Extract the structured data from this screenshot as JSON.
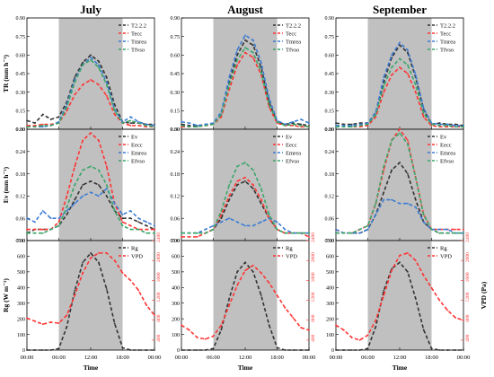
{
  "figure": {
    "months": [
      "July",
      "August",
      "September"
    ],
    "xlabel": "Time",
    "xticks": [
      "00:00",
      "06:00",
      "12:00",
      "18:00",
      "00:00"
    ],
    "row_ylabels": [
      "TR (mm h⁻¹)",
      "Ev (mm h⁻¹)",
      "Rg (W m⁻²)"
    ],
    "right_ylabel": "VPD (Pa)",
    "colors": {
      "black": "#333333",
      "red": "#ff3333",
      "blue": "#3b7bd4",
      "green": "#3aa66a",
      "shade": "#c0c0c0"
    }
  },
  "chart_data": [
    {
      "type": "line",
      "panel": "TR",
      "month": "July",
      "x": [
        0,
        1.5,
        3,
        4.5,
        6,
        7.5,
        9,
        10.5,
        12,
        13.5,
        15,
        16.5,
        18,
        19.5,
        21,
        22.5,
        24
      ],
      "xlim": [
        0,
        24
      ],
      "ylim": [
        0,
        0.9
      ],
      "yticks": [
        0.0,
        0.15,
        0.3,
        0.45,
        0.6,
        0.75,
        0.9
      ],
      "shaded": [
        6,
        18
      ],
      "series": [
        {
          "name": "T2.2.2",
          "color": "#333333",
          "values": [
            0.07,
            0.05,
            0.12,
            0.08,
            0.1,
            0.22,
            0.42,
            0.54,
            0.6,
            0.55,
            0.42,
            0.2,
            0.06,
            0.05,
            0.05,
            0.04,
            0.04
          ]
        },
        {
          "name": "Tecc",
          "color": "#ff3333",
          "values": [
            0.03,
            0.03,
            0.04,
            0.04,
            0.05,
            0.15,
            0.28,
            0.36,
            0.4,
            0.36,
            0.27,
            0.12,
            0.05,
            0.03,
            0.03,
            0.02,
            0.02
          ]
        },
        {
          "name": "Tmrea",
          "color": "#3b7bd4",
          "values": [
            0.02,
            0.02,
            0.02,
            0.03,
            0.06,
            0.2,
            0.4,
            0.52,
            0.58,
            0.52,
            0.38,
            0.16,
            0.06,
            0.1,
            0.06,
            0.04,
            0.03
          ]
        },
        {
          "name": "Tfvso",
          "color": "#3aa66a",
          "values": [
            0.02,
            0.02,
            0.03,
            0.03,
            0.05,
            0.18,
            0.38,
            0.52,
            0.56,
            0.5,
            0.36,
            0.15,
            0.05,
            0.07,
            0.05,
            0.03,
            0.02
          ]
        }
      ]
    },
    {
      "type": "line",
      "panel": "TR",
      "month": "August",
      "x": [
        0,
        1.5,
        3,
        4.5,
        6,
        7.5,
        9,
        10.5,
        12,
        13.5,
        15,
        16.5,
        18,
        19.5,
        21,
        22.5,
        24
      ],
      "xlim": [
        0,
        24
      ],
      "ylim": [
        0,
        0.9
      ],
      "yticks": [
        0.0,
        0.15,
        0.3,
        0.45,
        0.6,
        0.75,
        0.9
      ],
      "shaded": [
        6,
        18
      ],
      "series": [
        {
          "name": "T2.2.2",
          "color": "#333333",
          "values": [
            0.04,
            0.03,
            0.03,
            0.03,
            0.04,
            0.12,
            0.38,
            0.6,
            0.72,
            0.68,
            0.5,
            0.22,
            0.06,
            0.04,
            0.05,
            0.04,
            0.03
          ]
        },
        {
          "name": "Tecc",
          "color": "#ff3333",
          "values": [
            0.02,
            0.02,
            0.02,
            0.03,
            0.04,
            0.1,
            0.32,
            0.52,
            0.62,
            0.58,
            0.44,
            0.18,
            0.05,
            0.03,
            0.03,
            0.02,
            0.02
          ]
        },
        {
          "name": "Tmrea",
          "color": "#3b7bd4",
          "values": [
            0.06,
            0.05,
            0.03,
            0.04,
            0.05,
            0.14,
            0.42,
            0.64,
            0.76,
            0.72,
            0.54,
            0.25,
            0.07,
            0.04,
            0.06,
            0.08,
            0.05
          ]
        },
        {
          "name": "Tfvso",
          "color": "#3aa66a",
          "values": [
            0.03,
            0.02,
            0.02,
            0.03,
            0.04,
            0.12,
            0.36,
            0.56,
            0.66,
            0.62,
            0.46,
            0.2,
            0.06,
            0.03,
            0.04,
            0.03,
            0.02
          ]
        }
      ]
    },
    {
      "type": "line",
      "panel": "TR",
      "month": "September",
      "x": [
        0,
        1.5,
        3,
        4.5,
        6,
        7.5,
        9,
        10.5,
        12,
        13.5,
        15,
        16.5,
        18,
        19.5,
        21,
        22.5,
        24
      ],
      "xlim": [
        0,
        24
      ],
      "ylim": [
        0,
        0.9
      ],
      "yticks": [
        0.0,
        0.15,
        0.3,
        0.45,
        0.6,
        0.75,
        0.9
      ],
      "shaded": [
        6,
        18
      ],
      "series": [
        {
          "name": "T2.2.2",
          "color": "#333333",
          "values": [
            0.05,
            0.04,
            0.04,
            0.05,
            0.05,
            0.12,
            0.38,
            0.58,
            0.68,
            0.62,
            0.42,
            0.16,
            0.04,
            0.05,
            0.04,
            0.04,
            0.03
          ]
        },
        {
          "name": "Tecc",
          "color": "#ff3333",
          "values": [
            0.02,
            0.02,
            0.02,
            0.02,
            0.03,
            0.1,
            0.3,
            0.44,
            0.5,
            0.45,
            0.3,
            0.1,
            0.03,
            0.02,
            0.02,
            0.02,
            0.02
          ]
        },
        {
          "name": "Tmrea",
          "color": "#3b7bd4",
          "values": [
            0.03,
            0.03,
            0.03,
            0.04,
            0.05,
            0.14,
            0.42,
            0.6,
            0.7,
            0.64,
            0.44,
            0.17,
            0.05,
            0.04,
            0.04,
            0.03,
            0.03
          ]
        },
        {
          "name": "Tfvso",
          "color": "#3aa66a",
          "values": [
            0.02,
            0.02,
            0.02,
            0.03,
            0.04,
            0.12,
            0.35,
            0.5,
            0.57,
            0.52,
            0.36,
            0.13,
            0.04,
            0.03,
            0.03,
            0.02,
            0.02
          ]
        }
      ]
    },
    {
      "type": "line",
      "panel": "Ev",
      "month": "July",
      "x": [
        0,
        1.5,
        3,
        4.5,
        6,
        7.5,
        9,
        10.5,
        12,
        13.5,
        15,
        16.5,
        18,
        19.5,
        21,
        22.5,
        24
      ],
      "xlim": [
        0,
        24
      ],
      "ylim": [
        0,
        0.3
      ],
      "yticks": [
        0.0,
        0.06,
        0.12,
        0.18,
        0.24,
        0.3
      ],
      "shaded": [
        6,
        18
      ],
      "series": [
        {
          "name": "Ev",
          "color": "#333333",
          "values": [
            0.02,
            0.03,
            0.03,
            0.03,
            0.04,
            0.07,
            0.11,
            0.15,
            0.16,
            0.15,
            0.12,
            0.08,
            0.06,
            0.06,
            0.05,
            0.04,
            0.03
          ]
        },
        {
          "name": "Eecc",
          "color": "#ff3333",
          "values": [
            0.03,
            0.03,
            0.03,
            0.03,
            0.05,
            0.12,
            0.2,
            0.27,
            0.29,
            0.27,
            0.2,
            0.1,
            0.05,
            0.04,
            0.03,
            0.03,
            0.03
          ]
        },
        {
          "name": "Emrea",
          "color": "#3b7bd4",
          "values": [
            0.06,
            0.05,
            0.08,
            0.06,
            0.06,
            0.08,
            0.1,
            0.12,
            0.13,
            0.12,
            0.14,
            0.1,
            0.07,
            0.08,
            0.06,
            0.05,
            0.04
          ]
        },
        {
          "name": "Efvso",
          "color": "#3aa66a",
          "values": [
            0.02,
            0.02,
            0.02,
            0.03,
            0.04,
            0.09,
            0.15,
            0.19,
            0.2,
            0.19,
            0.15,
            0.08,
            0.04,
            0.03,
            0.03,
            0.02,
            0.02
          ]
        }
      ]
    },
    {
      "type": "line",
      "panel": "Ev",
      "month": "August",
      "x": [
        0,
        1.5,
        3,
        4.5,
        6,
        7.5,
        9,
        10.5,
        12,
        13.5,
        15,
        16.5,
        18,
        19.5,
        21,
        22.5,
        24
      ],
      "xlim": [
        0,
        24
      ],
      "ylim": [
        0,
        0.3
      ],
      "yticks": [
        0.0,
        0.06,
        0.12,
        0.18,
        0.24,
        0.3
      ],
      "shaded": [
        6,
        18
      ],
      "series": [
        {
          "name": "Ev",
          "color": "#333333",
          "values": [
            0.02,
            0.02,
            0.02,
            0.02,
            0.03,
            0.06,
            0.11,
            0.15,
            0.16,
            0.14,
            0.1,
            0.06,
            0.03,
            0.02,
            0.02,
            0.02,
            0.02
          ]
        },
        {
          "name": "Eecc",
          "color": "#ff3333",
          "values": [
            0.01,
            0.01,
            0.01,
            0.02,
            0.03,
            0.07,
            0.12,
            0.16,
            0.17,
            0.15,
            0.11,
            0.06,
            0.03,
            0.02,
            0.02,
            0.02,
            0.01
          ]
        },
        {
          "name": "Emrea",
          "color": "#3b7bd4",
          "values": [
            0.02,
            0.02,
            0.02,
            0.03,
            0.04,
            0.05,
            0.06,
            0.05,
            0.04,
            0.04,
            0.05,
            0.06,
            0.05,
            0.03,
            0.02,
            0.02,
            0.02
          ]
        },
        {
          "name": "Efvso",
          "color": "#3aa66a",
          "values": [
            0.02,
            0.02,
            0.02,
            0.02,
            0.03,
            0.08,
            0.15,
            0.2,
            0.21,
            0.19,
            0.14,
            0.07,
            0.03,
            0.02,
            0.02,
            0.02,
            0.02
          ]
        }
      ]
    },
    {
      "type": "line",
      "panel": "Ev",
      "month": "September",
      "x": [
        0,
        1.5,
        3,
        4.5,
        6,
        7.5,
        9,
        10.5,
        12,
        13.5,
        15,
        16.5,
        18,
        19.5,
        21,
        22.5,
        24
      ],
      "xlim": [
        0,
        24
      ],
      "ylim": [
        0,
        0.3
      ],
      "yticks": [
        0.0,
        0.06,
        0.12,
        0.18,
        0.24,
        0.3
      ],
      "shaded": [
        6,
        18
      ],
      "series": [
        {
          "name": "Ev",
          "color": "#333333",
          "values": [
            0.02,
            0.02,
            0.02,
            0.02,
            0.03,
            0.07,
            0.13,
            0.19,
            0.21,
            0.18,
            0.11,
            0.05,
            0.03,
            0.02,
            0.02,
            0.02,
            0.02
          ]
        },
        {
          "name": "Eecc",
          "color": "#ff3333",
          "values": [
            0.03,
            0.02,
            0.02,
            0.03,
            0.04,
            0.1,
            0.19,
            0.27,
            0.3,
            0.27,
            0.17,
            0.07,
            0.03,
            0.03,
            0.03,
            0.03,
            0.03
          ]
        },
        {
          "name": "Emrea",
          "color": "#3b7bd4",
          "values": [
            0.03,
            0.02,
            0.02,
            0.02,
            0.03,
            0.07,
            0.11,
            0.11,
            0.1,
            0.1,
            0.09,
            0.05,
            0.03,
            0.03,
            0.03,
            0.02,
            0.02
          ]
        },
        {
          "name": "Efvso",
          "color": "#3aa66a",
          "values": [
            0.02,
            0.02,
            0.02,
            0.03,
            0.04,
            0.1,
            0.2,
            0.27,
            0.29,
            0.26,
            0.17,
            0.07,
            0.03,
            0.02,
            0.02,
            0.02,
            0.02
          ]
        }
      ]
    },
    {
      "type": "line",
      "panel": "Rg",
      "month": "July",
      "x": [
        0,
        1.5,
        3,
        4.5,
        6,
        7.5,
        9,
        10.5,
        12,
        13.5,
        15,
        16.5,
        18,
        19.5,
        21,
        22.5,
        24
      ],
      "xlim": [
        0,
        24
      ],
      "ylim": [
        0,
        700
      ],
      "yticks": [
        0,
        100,
        200,
        300,
        400,
        500,
        600,
        700
      ],
      "y2lim": [
        200,
        2400
      ],
      "y2ticks": [
        400,
        800,
        1200,
        1600,
        2000,
        2400
      ],
      "shaded": [
        6,
        18
      ],
      "series": [
        {
          "name": "Rg",
          "axis": "left",
          "color": "#333333",
          "values": [
            0,
            0,
            0,
            0,
            10,
            150,
            380,
            560,
            620,
            560,
            390,
            170,
            15,
            0,
            0,
            0,
            0
          ]
        },
        {
          "name": "VPD",
          "axis": "right",
          "color": "#ff3333",
          "values": [
            840,
            780,
            720,
            760,
            740,
            900,
            1300,
            1750,
            2050,
            2150,
            2150,
            2000,
            1750,
            1600,
            1400,
            1100,
            900
          ]
        }
      ]
    },
    {
      "type": "line",
      "panel": "Rg",
      "month": "August",
      "x": [
        0,
        1.5,
        3,
        4.5,
        6,
        7.5,
        9,
        10.5,
        12,
        13.5,
        15,
        16.5,
        18,
        19.5,
        21,
        22.5,
        24
      ],
      "xlim": [
        0,
        24
      ],
      "ylim": [
        0,
        700
      ],
      "yticks": [
        0,
        100,
        200,
        300,
        400,
        500,
        600,
        700
      ],
      "y2lim": [
        200,
        2400
      ],
      "y2ticks": [
        400,
        800,
        1200,
        1600,
        2000,
        2400
      ],
      "shaded": [
        6,
        18
      ],
      "series": [
        {
          "name": "Rg",
          "axis": "left",
          "color": "#333333",
          "values": [
            0,
            0,
            0,
            0,
            10,
            130,
            330,
            500,
            560,
            500,
            350,
            160,
            15,
            0,
            0,
            0,
            0
          ]
        },
        {
          "name": "VPD",
          "axis": "right",
          "color": "#ff3333",
          "values": [
            700,
            600,
            450,
            420,
            480,
            700,
            1100,
            1500,
            1800,
            1900,
            1750,
            1550,
            1300,
            1050,
            850,
            650,
            600
          ]
        }
      ]
    },
    {
      "type": "line",
      "panel": "Rg",
      "month": "September",
      "x": [
        0,
        1.5,
        3,
        4.5,
        6,
        7.5,
        9,
        10.5,
        12,
        13.5,
        15,
        16.5,
        18,
        19.5,
        21,
        22.5,
        24
      ],
      "xlim": [
        0,
        24
      ],
      "ylim": [
        0,
        700
      ],
      "yticks": [
        0,
        100,
        200,
        300,
        400,
        500,
        600,
        700
      ],
      "y2lim": [
        200,
        2400
      ],
      "y2ticks": [
        400,
        800,
        1200,
        1600,
        2000,
        2400
      ],
      "shaded": [
        6,
        18
      ],
      "series": [
        {
          "name": "Rg",
          "axis": "left",
          "color": "#333333",
          "values": [
            0,
            0,
            0,
            0,
            10,
            150,
            380,
            520,
            560,
            500,
            330,
            130,
            10,
            0,
            0,
            0,
            0
          ]
        },
        {
          "name": "VPD",
          "axis": "right",
          "color": "#ff3333",
          "values": [
            700,
            600,
            450,
            400,
            500,
            800,
            1300,
            1800,
            2100,
            2150,
            2000,
            1700,
            1450,
            1200,
            1000,
            850,
            800
          ]
        }
      ]
    }
  ]
}
